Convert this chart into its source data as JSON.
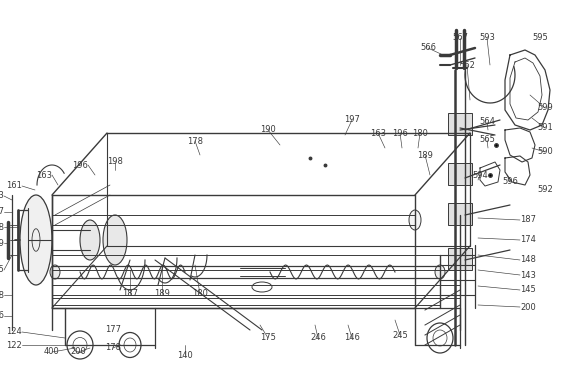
{
  "background_color": "#ffffff",
  "line_color": "#3a3a3a",
  "text_color": "#3a3a3a",
  "figsize": [
    5.81,
    3.69
  ],
  "dpi": 100
}
